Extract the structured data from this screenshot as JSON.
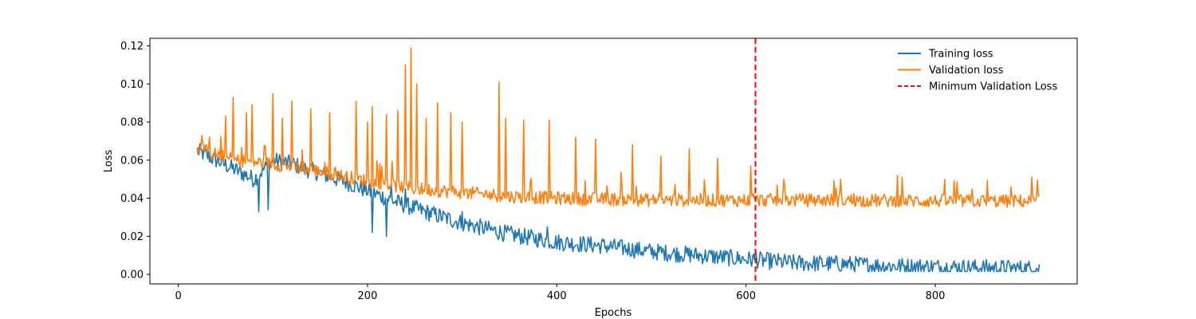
{
  "chart_data": {
    "type": "line",
    "title": "",
    "xlabel": "Epochs",
    "ylabel": "Loss",
    "xlim": [
      -30,
      950
    ],
    "ylim": [
      -0.005,
      0.124
    ],
    "x_ticks": [
      0,
      200,
      400,
      600,
      800
    ],
    "y_ticks": [
      0.0,
      0.02,
      0.04,
      0.06,
      0.08,
      0.1,
      0.12
    ],
    "x_tick_labels": [
      "0",
      "200",
      "400",
      "600",
      "800"
    ],
    "y_tick_labels": [
      "0.00",
      "0.02",
      "0.04",
      "0.06",
      "0.08",
      "0.10",
      "0.12"
    ],
    "grid": false,
    "legend_position": "upper-right",
    "series": [
      {
        "name": "Training loss",
        "color": "#1f77b4",
        "x_start": 20,
        "x_end": 910,
        "trend": [
          [
            20,
            0.065
          ],
          [
            40,
            0.06
          ],
          [
            60,
            0.055
          ],
          [
            80,
            0.05
          ],
          [
            100,
            0.06
          ],
          [
            120,
            0.058
          ],
          [
            150,
            0.053
          ],
          [
            180,
            0.048
          ],
          [
            200,
            0.044
          ],
          [
            230,
            0.038
          ],
          [
            260,
            0.033
          ],
          [
            300,
            0.027
          ],
          [
            350,
            0.021
          ],
          [
            400,
            0.017
          ],
          [
            450,
            0.015
          ],
          [
            500,
            0.012
          ],
          [
            550,
            0.01
          ],
          [
            600,
            0.008
          ],
          [
            650,
            0.006
          ],
          [
            700,
            0.0055
          ],
          [
            750,
            0.0045
          ],
          [
            800,
            0.004
          ],
          [
            850,
            0.0035
          ],
          [
            910,
            0.003
          ]
        ],
        "noise": 0.0045,
        "spikes": [
          [
            85,
            0.033
          ],
          [
            95,
            0.034
          ],
          [
            100,
            0.059
          ],
          [
            205,
            0.022
          ],
          [
            220,
            0.02
          ],
          [
            225,
            0.048
          ],
          [
            240,
            0.045
          ],
          [
            300,
            0.033
          ],
          [
            390,
            0.025
          ],
          [
            610,
            0.013
          ]
        ]
      },
      {
        "name": "Validation loss",
        "color": "#ff7f0e",
        "x_start": 20,
        "x_end": 910,
        "trend": [
          [
            20,
            0.066
          ],
          [
            60,
            0.06
          ],
          [
            100,
            0.058
          ],
          [
            150,
            0.054
          ],
          [
            200,
            0.049
          ],
          [
            250,
            0.045
          ],
          [
            300,
            0.043
          ],
          [
            350,
            0.041
          ],
          [
            400,
            0.04
          ],
          [
            500,
            0.039
          ],
          [
            600,
            0.039
          ],
          [
            700,
            0.039
          ],
          [
            800,
            0.0385
          ],
          [
            910,
            0.0385
          ]
        ],
        "noise": 0.0035,
        "spikes": [
          [
            25,
            0.073
          ],
          [
            50,
            0.083
          ],
          [
            58,
            0.093
          ],
          [
            72,
            0.085
          ],
          [
            78,
            0.089
          ],
          [
            100,
            0.095
          ],
          [
            110,
            0.082
          ],
          [
            120,
            0.091
          ],
          [
            140,
            0.087
          ],
          [
            160,
            0.085
          ],
          [
            188,
            0.091
          ],
          [
            200,
            0.08
          ],
          [
            205,
            0.088
          ],
          [
            220,
            0.084
          ],
          [
            232,
            0.086
          ],
          [
            240,
            0.11
          ],
          [
            246,
            0.119
          ],
          [
            252,
            0.1
          ],
          [
            262,
            0.082
          ],
          [
            274,
            0.09
          ],
          [
            288,
            0.085
          ],
          [
            300,
            0.08
          ],
          [
            339,
            0.101
          ],
          [
            346,
            0.082
          ],
          [
            365,
            0.081
          ],
          [
            392,
            0.081
          ],
          [
            420,
            0.072
          ],
          [
            441,
            0.071
          ],
          [
            480,
            0.068
          ],
          [
            510,
            0.062
          ],
          [
            540,
            0.066
          ],
          [
            570,
            0.061
          ],
          [
            605,
            0.057
          ],
          [
            640,
            0.05
          ],
          [
            700,
            0.05
          ],
          [
            760,
            0.052
          ],
          [
            820,
            0.049
          ],
          [
            880,
            0.046
          ]
        ]
      }
    ],
    "vline": {
      "name": "Minimum Validation Loss",
      "x": 610,
      "color": "#ff0000",
      "style": "dashed"
    }
  }
}
